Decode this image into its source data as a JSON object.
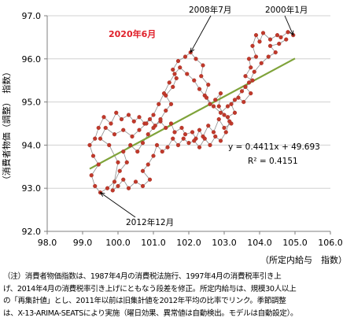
{
  "chart_data": {
    "type": "scatter",
    "title": "",
    "ylabel": "（消費者物価（調整）　指数）",
    "xlabel": "（所定内給与　指数）",
    "xlim": [
      98.0,
      106.0
    ],
    "ylim": [
      92.0,
      97.0
    ],
    "x_ticks": [
      "98.0",
      "99.0",
      "100.0",
      "101.0",
      "102.0",
      "103.0",
      "104.0",
      "105.0",
      "106.0"
    ],
    "y_ticks": [
      "92.0",
      "93.0",
      "94.0",
      "95.0",
      "96.0",
      "97.0"
    ],
    "grid": "horizontal",
    "connected_points": true,
    "colors": {
      "points": "#c0392b",
      "path": "#8c8c8c",
      "trendline": "#7fa33a",
      "highlight_label": "#e0202a"
    },
    "trendline": {
      "equation": "y = 0.4411x + 49.693",
      "r_squared": "R² = 0.4151",
      "slope": 0.4411,
      "intercept": 49.693,
      "x_range": [
        99.2,
        105.0
      ]
    },
    "annotations": [
      {
        "text": "2008年7月",
        "x": 102.05,
        "y": 96.15,
        "highlight": false
      },
      {
        "text": "2000年1月",
        "x": 104.95,
        "y": 96.55,
        "highlight": false
      },
      {
        "text": "2020年6月",
        "x": 102.0,
        "y": 96.0,
        "highlight": true
      },
      {
        "text": "2012年12月",
        "x": 99.5,
        "y": 92.9,
        "highlight": false
      }
    ],
    "series": [
      {
        "values": [
          [
            104.95,
            96.55
          ],
          [
            104.8,
            96.62
          ],
          [
            104.6,
            96.5
          ],
          [
            104.5,
            96.55
          ],
          [
            104.3,
            96.45
          ],
          [
            104.1,
            96.6
          ],
          [
            104.0,
            96.4
          ],
          [
            103.9,
            96.55
          ],
          [
            103.8,
            96.3
          ],
          [
            103.9,
            96.05
          ],
          [
            103.7,
            96.0
          ],
          [
            103.75,
            95.8
          ],
          [
            103.6,
            95.6
          ],
          [
            103.8,
            95.5
          ],
          [
            103.6,
            95.35
          ],
          [
            103.75,
            95.2
          ],
          [
            103.55,
            95.0
          ],
          [
            103.4,
            95.1
          ],
          [
            103.2,
            94.95
          ],
          [
            103.3,
            94.75
          ],
          [
            103.1,
            94.65
          ],
          [
            103.2,
            94.5
          ],
          [
            103.0,
            94.4
          ],
          [
            102.85,
            94.6
          ],
          [
            102.7,
            94.3
          ],
          [
            102.55,
            94.45
          ],
          [
            102.4,
            94.2
          ],
          [
            102.3,
            94.35
          ],
          [
            102.2,
            94.15
          ],
          [
            102.1,
            94.3
          ],
          [
            101.9,
            94.25
          ],
          [
            101.8,
            94.4
          ],
          [
            101.6,
            94.3
          ],
          [
            101.5,
            94.5
          ],
          [
            101.35,
            94.4
          ],
          [
            101.2,
            94.55
          ],
          [
            101.05,
            94.45
          ],
          [
            100.9,
            94.6
          ],
          [
            100.75,
            94.5
          ],
          [
            100.6,
            94.65
          ],
          [
            100.45,
            94.55
          ],
          [
            100.3,
            94.7
          ],
          [
            100.1,
            94.6
          ],
          [
            99.95,
            94.75
          ],
          [
            99.8,
            94.5
          ],
          [
            99.6,
            94.65
          ],
          [
            99.45,
            94.4
          ],
          [
            99.35,
            94.15
          ],
          [
            99.2,
            94.0
          ],
          [
            99.3,
            93.75
          ],
          [
            99.45,
            93.55
          ],
          [
            99.25,
            93.3
          ],
          [
            99.35,
            93.05
          ],
          [
            99.5,
            92.9
          ],
          [
            99.7,
            93.0
          ],
          [
            99.9,
            93.15
          ],
          [
            100.05,
            93.4
          ],
          [
            100.25,
            93.6
          ],
          [
            100.15,
            93.85
          ],
          [
            100.35,
            94.0
          ],
          [
            100.55,
            93.85
          ],
          [
            100.7,
            94.05
          ],
          [
            100.85,
            94.25
          ],
          [
            101.0,
            94.4
          ],
          [
            101.2,
            94.6
          ],
          [
            101.35,
            94.8
          ],
          [
            101.5,
            94.95
          ],
          [
            101.35,
            95.15
          ],
          [
            101.55,
            95.35
          ],
          [
            101.65,
            95.55
          ],
          [
            101.55,
            95.75
          ],
          [
            101.7,
            95.95
          ],
          [
            101.9,
            96.05
          ],
          [
            102.05,
            96.15
          ],
          [
            102.2,
            96.0
          ],
          [
            102.4,
            95.85
          ],
          [
            102.35,
            95.6
          ],
          [
            102.55,
            95.4
          ],
          [
            102.45,
            95.15
          ],
          [
            102.6,
            94.95
          ],
          [
            102.75,
            95.05
          ],
          [
            102.9,
            95.2
          ],
          [
            102.85,
            94.9
          ],
          [
            103.0,
            94.7
          ],
          [
            103.15,
            94.55
          ],
          [
            103.05,
            94.3
          ],
          [
            102.9,
            94.1
          ],
          [
            102.75,
            94.2
          ],
          [
            102.6,
            94.0
          ],
          [
            102.45,
            94.15
          ],
          [
            102.3,
            93.95
          ],
          [
            102.15,
            94.1
          ],
          [
            102.0,
            94.05
          ],
          [
            101.85,
            94.15
          ],
          [
            101.7,
            94.0
          ],
          [
            101.55,
            94.15
          ],
          [
            101.4,
            93.95
          ],
          [
            101.25,
            93.85
          ],
          [
            101.1,
            94.0
          ],
          [
            101.0,
            93.75
          ],
          [
            100.85,
            93.55
          ],
          [
            100.7,
            93.4
          ],
          [
            100.9,
            93.2
          ],
          [
            100.7,
            93.05
          ],
          [
            100.5,
            93.15
          ],
          [
            100.3,
            93.0
          ],
          [
            100.15,
            93.2
          ],
          [
            100.0,
            93.05
          ],
          [
            99.85,
            92.95
          ],
          [
            100.0,
            93.6
          ],
          [
            99.75,
            94.0
          ],
          [
            99.5,
            94.15
          ],
          [
            99.65,
            94.4
          ],
          [
            99.9,
            94.25
          ],
          [
            100.15,
            94.35
          ],
          [
            100.4,
            94.2
          ],
          [
            100.6,
            94.35
          ],
          [
            100.8,
            94.5
          ],
          [
            101.0,
            94.7
          ],
          [
            101.15,
            94.95
          ],
          [
            101.3,
            95.2
          ],
          [
            101.45,
            95.45
          ],
          [
            101.6,
            95.65
          ],
          [
            101.75,
            95.8
          ],
          [
            101.95,
            95.65
          ],
          [
            102.15,
            95.5
          ],
          [
            102.3,
            95.3
          ],
          [
            102.5,
            95.1
          ],
          [
            102.7,
            94.9
          ],
          [
            102.9,
            94.75
          ],
          [
            103.1,
            94.9
          ],
          [
            103.3,
            95.05
          ],
          [
            103.5,
            95.25
          ],
          [
            103.7,
            95.45
          ],
          [
            103.85,
            95.7
          ],
          [
            104.05,
            95.9
          ],
          [
            104.25,
            96.05
          ],
          [
            104.45,
            96.15
          ],
          [
            104.3,
            96.3
          ],
          [
            104.55,
            96.35
          ],
          [
            104.75,
            96.45
          ]
        ]
      }
    ]
  },
  "note": {
    "lines": [
      "（注）消費者物価指数は、1987年4月の消費税法施行、1997年4月の消費税率引き上",
      "げ、2014年4月の消費税率引き上げにともなう段差を修正。所定内給与は、規模30人以上",
      "の「再集計値」とし、2011年以前は旧集計値を2012年平均の比率でリンク。季節調整",
      "は、X-13-ARIMA-SEATSにより実施（曜日効果、異常値は自動検出。モデルは自動設定）。"
    ]
  }
}
